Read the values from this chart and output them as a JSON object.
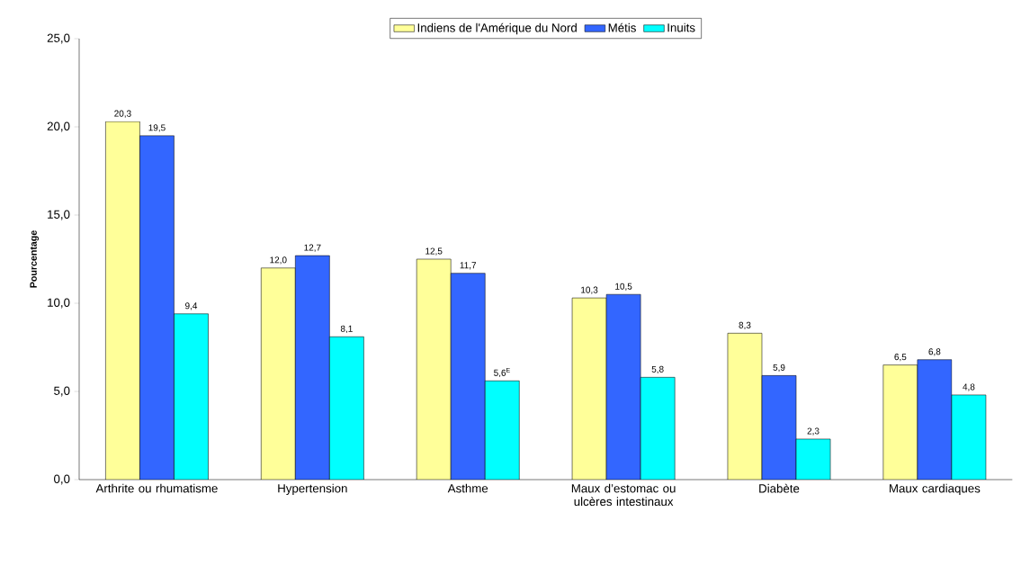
{
  "chart_data": {
    "type": "bar",
    "ylabel": "Pourcentage",
    "legend": "top",
    "categories": [
      "Arthrite ou rhumatisme",
      "Hypertension",
      "Asthme",
      "Maux d’estomac ou ulcères intestinaux",
      "Diabète",
      "Maux cardiaques"
    ],
    "series": [
      {
        "name": "Indiens de l'Amérique du Nord",
        "color": "#ffff99",
        "values": [
          20.3,
          12.0,
          12.5,
          10.3,
          8.3,
          6.5
        ],
        "value_labels": [
          "20,3",
          "12,0",
          "12,5",
          "10,3",
          "8,3",
          "6,5"
        ]
      },
      {
        "name": "Métis",
        "color": "#3366ff",
        "values": [
          19.5,
          12.7,
          11.7,
          10.5,
          5.9,
          6.8
        ],
        "value_labels": [
          "19,5",
          "12,7",
          "11,7",
          "10,5",
          "5,9",
          "6,8"
        ]
      },
      {
        "name": "Inuits",
        "color": "#00ffff",
        "values": [
          9.4,
          8.1,
          5.6,
          5.8,
          2.3,
          4.8
        ],
        "value_labels": [
          "9,4",
          "8,1",
          "5,6$^{E}$",
          "5,8",
          "2,3",
          "4,8"
        ]
      }
    ],
    "ylim": [
      0,
      25
    ],
    "yticks": [
      {
        "value": 0,
        "label": "0,0"
      },
      {
        "value": 5,
        "label": "5,0"
      },
      {
        "value": 10,
        "label": "10,0"
      },
      {
        "value": 15,
        "label": "15,0"
      },
      {
        "value": 20,
        "label": "20,0"
      },
      {
        "value": 25,
        "label": "25,0"
      }
    ]
  }
}
